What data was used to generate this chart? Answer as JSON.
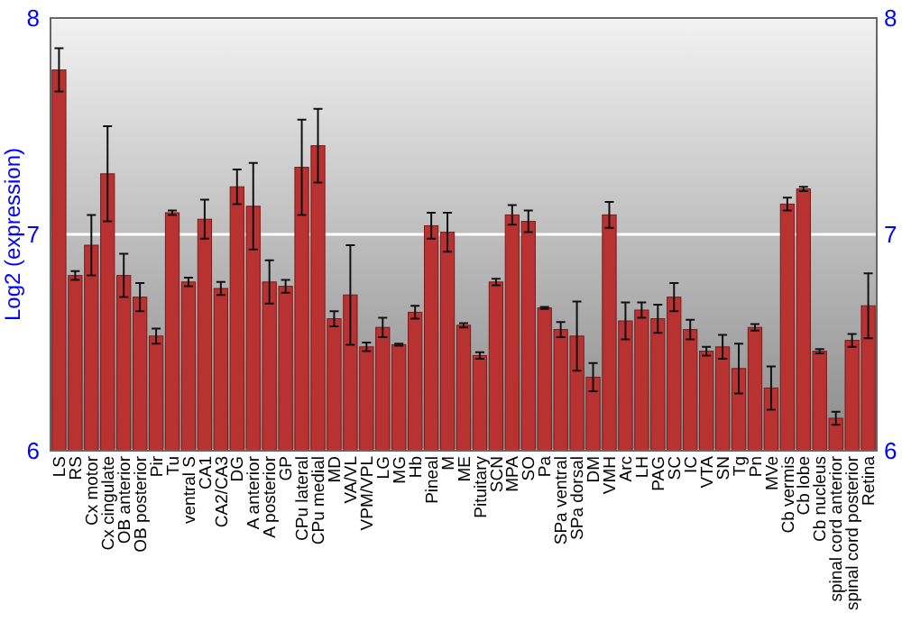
{
  "chart_data": {
    "type": "bar",
    "ylabel": "Log2 (expression)",
    "categories": [
      "LS",
      "RS",
      "Cx motor",
      "Cx cingulate",
      "OB anterior",
      "OB posterior",
      "Pir",
      "Tu",
      "ventral S",
      "CA1",
      "CA2/CA3",
      "DG",
      "A anterior",
      "A posterior",
      "GP",
      "CPu lateral",
      "CPu medial",
      "MD",
      "VA/VL",
      "VPM/VPL",
      "LG",
      "MG",
      "Hb",
      "Pineal",
      "M",
      "ME",
      "Pituitary",
      "SCN",
      "MPA",
      "SO",
      "Pa",
      "SPa ventral",
      "SPa dorsal",
      "DM",
      "VMH",
      "Arc",
      "LH",
      "PAG",
      "SC",
      "IC",
      "VTA",
      "SN",
      "Tg",
      "Pn",
      "MVe",
      "Cb vermis",
      "Cb lobe",
      "Cb nucleus",
      "spinal cord anterior",
      "spinal cord posterior",
      "Retina"
    ],
    "values": [
      7.76,
      6.81,
      6.95,
      7.28,
      6.81,
      6.71,
      6.53,
      7.1,
      6.78,
      7.07,
      6.75,
      7.22,
      7.13,
      6.78,
      6.76,
      7.31,
      7.41,
      6.61,
      6.72,
      6.48,
      6.57,
      6.49,
      6.64,
      7.04,
      7.01,
      6.58,
      6.44,
      6.78,
      7.09,
      7.06,
      6.66,
      6.56,
      6.53,
      6.34,
      7.09,
      6.6,
      6.65,
      6.61,
      6.71,
      6.56,
      6.46,
      6.48,
      6.38,
      6.57,
      6.29,
      7.14,
      7.21,
      6.46,
      6.15,
      6.51,
      6.67
    ],
    "errors": [
      0.1,
      0.02,
      0.14,
      0.22,
      0.1,
      0.065,
      0.035,
      0.01,
      0.02,
      0.09,
      0.03,
      0.08,
      0.2,
      0.1,
      0.03,
      0.22,
      0.17,
      0.035,
      0.23,
      0.02,
      0.045,
      0.005,
      0.03,
      0.06,
      0.09,
      0.01,
      0.015,
      0.015,
      0.045,
      0.05,
      0.005,
      0.035,
      0.16,
      0.065,
      0.06,
      0.085,
      0.035,
      0.065,
      0.065,
      0.045,
      0.02,
      0.055,
      0.115,
      0.015,
      0.1,
      0.03,
      0.01,
      0.01,
      0.03,
      0.03,
      0.15
    ],
    "color": "#b83232",
    "ylim": [
      6,
      8
    ],
    "yticks": [
      6,
      7,
      8
    ],
    "y2lim": [
      6,
      8
    ],
    "y2ticks": [
      6,
      7,
      8
    ],
    "grid": "y"
  }
}
